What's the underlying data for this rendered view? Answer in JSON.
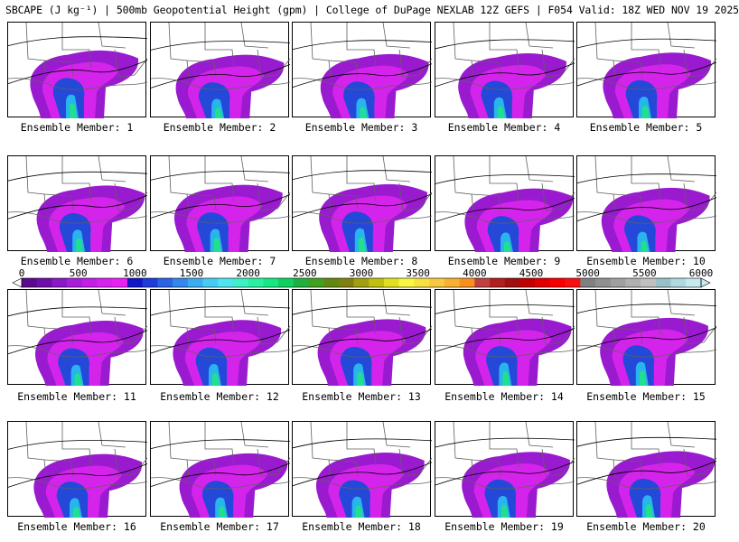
{
  "header": {
    "title": "SBCAPE (J kg⁻¹) | 500mb Geopotential Height (gpm) | College of DuPage NEXLAB 12Z GEFS | F054 Valid: 18Z WED NOV 19 2025"
  },
  "colorbar": {
    "tick_labels": [
      "0",
      "500",
      "1000",
      "1500",
      "2000",
      "2500",
      "3000",
      "3500",
      "4000",
      "4500",
      "5000",
      "5500",
      "6000"
    ],
    "colors": [
      "#5a0a8c",
      "#6e10a8",
      "#8a18c4",
      "#a81ed8",
      "#c21ee8",
      "#d820f0",
      "#e820f4",
      "#1414c8",
      "#1e3cd8",
      "#2864e4",
      "#3288ec",
      "#3cacf0",
      "#46ccf4",
      "#50e4f0",
      "#3cf0c8",
      "#28f0a0",
      "#14e880",
      "#10d060",
      "#20b040",
      "#40a020",
      "#608810",
      "#808010",
      "#a0a010",
      "#c0c010",
      "#e0e020",
      "#f8f840",
      "#f8e040",
      "#f8c840",
      "#f8b030",
      "#f89020",
      "#c04040",
      "#b02020",
      "#a01010",
      "#c00000",
      "#e00000",
      "#f80000",
      "#f81010",
      "#808080",
      "#909090",
      "#a0a0a0",
      "#b0b0b0",
      "#c0c0c0",
      "#98c0c8",
      "#b0d8e0",
      "#c8e8f0"
    ],
    "undermin_color": "#ffffff",
    "overmax_color": "#c8e8f0"
  },
  "panels": [
    {
      "caption": "Ensemble Member: 1"
    },
    {
      "caption": "Ensemble Member: 2"
    },
    {
      "caption": "Ensemble Member: 3"
    },
    {
      "caption": "Ensemble Member: 4"
    },
    {
      "caption": "Ensemble Member: 5"
    },
    {
      "caption": "Ensemble Member: 6"
    },
    {
      "caption": "Ensemble Member: 7"
    },
    {
      "caption": "Ensemble Member: 8"
    },
    {
      "caption": "Ensemble Member: 9"
    },
    {
      "caption": "Ensemble Member: 10"
    },
    {
      "caption": "Ensemble Member: 11"
    },
    {
      "caption": "Ensemble Member: 12"
    },
    {
      "caption": "Ensemble Member: 13"
    },
    {
      "caption": "Ensemble Member: 14"
    },
    {
      "caption": "Ensemble Member: 15"
    },
    {
      "caption": "Ensemble Member: 16"
    },
    {
      "caption": "Ensemble Member: 17"
    },
    {
      "caption": "Ensemble Member: 18"
    },
    {
      "caption": "Ensemble Member: 19"
    },
    {
      "caption": "Ensemble Member: 20"
    }
  ],
  "field_colors": {
    "low": "#9a1ad0",
    "mid": "#d424ec",
    "blue": "#2448d8",
    "cyan": "#28b4ec",
    "green": "#20e090",
    "land_lines": "#606060",
    "height_lines": "#000000"
  }
}
